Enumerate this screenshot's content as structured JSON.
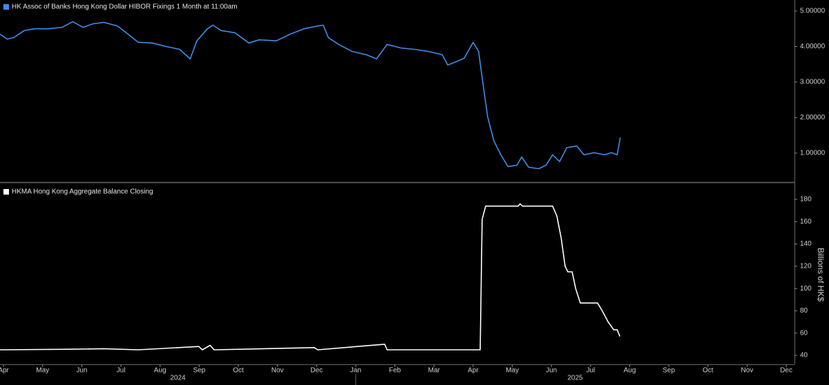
{
  "chart_data": [
    {
      "type": "line",
      "xlim": [
        3.91,
        24.21
      ],
      "ylim": [
        0.22,
        5.31
      ],
      "yticks": [
        {
          "value": 5,
          "label": "5.00000"
        },
        {
          "value": 4,
          "label": "4.00000"
        },
        {
          "value": 3,
          "label": "3.00000"
        },
        {
          "value": 2,
          "label": "2.00000"
        },
        {
          "value": 1,
          "label": "1.00000"
        }
      ],
      "series": [
        {
          "name": "HK Assoc of Banks Hong Kong Dollar HIBOR Fixings 1 Month at 11:00am",
          "color": "#3d8ee8",
          "x": [
            3.91,
            4.09,
            4.26,
            4.53,
            4.79,
            5.15,
            5.5,
            5.77,
            6.03,
            6.29,
            6.56,
            6.91,
            7.18,
            7.44,
            7.8,
            8.15,
            8.5,
            8.77,
            8.94,
            9.21,
            9.35,
            9.56,
            9.91,
            10.27,
            10.53,
            10.97,
            11.33,
            11.68,
            12.03,
            12.17,
            12.3,
            12.56,
            12.91,
            13.27,
            13.53,
            13.8,
            14.15,
            14.5,
            14.86,
            15.21,
            15.35,
            15.56,
            15.77,
            16.0,
            16.14,
            16.27,
            16.37,
            16.53,
            16.71,
            16.89,
            17.12,
            17.24,
            17.42,
            17.68,
            17.86,
            18.03,
            18.21,
            18.39,
            18.65,
            18.83,
            19.09,
            19.36,
            19.53,
            19.68,
            19.76
          ],
          "values": [
            4.35,
            4.21,
            4.25,
            4.45,
            4.5,
            4.5,
            4.54,
            4.7,
            4.54,
            4.64,
            4.68,
            4.58,
            4.35,
            4.12,
            4.1,
            4.0,
            3.92,
            3.65,
            4.16,
            4.5,
            4.6,
            4.45,
            4.39,
            4.1,
            4.19,
            4.16,
            4.35,
            4.5,
            4.58,
            4.6,
            4.25,
            4.06,
            3.86,
            3.77,
            3.65,
            4.06,
            3.96,
            3.92,
            3.86,
            3.77,
            3.48,
            3.57,
            3.67,
            4.12,
            3.86,
            2.8,
            2.02,
            1.34,
            0.95,
            0.62,
            0.66,
            0.89,
            0.6,
            0.56,
            0.66,
            0.95,
            0.76,
            1.15,
            1.2,
            0.95,
            1.01,
            0.95,
            1.01,
            0.95,
            1.44
          ]
        }
      ]
    },
    {
      "type": "line",
      "ylabel": "Billions of HK$",
      "xlim": [
        3.91,
        24.21
      ],
      "ylim": [
        32,
        193
      ],
      "xticks": [
        {
          "value": 4,
          "label": "Apr"
        },
        {
          "value": 5,
          "label": "May"
        },
        {
          "value": 6,
          "label": "Jun"
        },
        {
          "value": 7,
          "label": "Jul"
        },
        {
          "value": 8,
          "label": "Aug"
        },
        {
          "value": 9,
          "label": "Sep"
        },
        {
          "value": 10,
          "label": "Oct"
        },
        {
          "value": 11,
          "label": "Nov"
        },
        {
          "value": 12,
          "label": "Dec"
        },
        {
          "value": 13,
          "label": "Jan"
        },
        {
          "value": 14,
          "label": "Feb"
        },
        {
          "value": 15,
          "label": "Mar"
        },
        {
          "value": 16,
          "label": "Apr"
        },
        {
          "value": 17,
          "label": "May"
        },
        {
          "value": 18,
          "label": "Jun"
        },
        {
          "value": 19,
          "label": "Jul"
        },
        {
          "value": 20,
          "label": "Aug"
        },
        {
          "value": 21,
          "label": "Sep"
        },
        {
          "value": 22,
          "label": "Oct"
        },
        {
          "value": 23,
          "label": "Nov"
        },
        {
          "value": 24,
          "label": "Dec"
        }
      ],
      "year_labels": [
        "2024",
        "2025"
      ],
      "yticks": [
        40,
        60,
        80,
        100,
        120,
        140,
        160,
        180
      ],
      "series": [
        {
          "name": "HKMA Hong Kong Aggregate Balance Closing",
          "color": "#ffffff",
          "x": [
            3.91,
            5.68,
            6.56,
            7.44,
            8.99,
            9.08,
            9.28,
            9.38,
            11.94,
            12.03,
            13.74,
            13.8,
            16.18,
            16.23,
            16.32,
            17.15,
            17.2,
            17.26,
            18.03,
            18.14,
            18.25,
            18.35,
            18.42,
            18.53,
            18.62,
            18.74,
            19.18,
            19.3,
            19.45,
            19.59,
            19.68,
            19.75
          ],
          "values": [
            45,
            45.5,
            46,
            45,
            48,
            45,
            49,
            45,
            47,
            45,
            50,
            45,
            45,
            162,
            174,
            174,
            176,
            174,
            174,
            165,
            145,
            120,
            115,
            115,
            100,
            87,
            87,
            80,
            70,
            63,
            63,
            57
          ]
        }
      ]
    }
  ]
}
